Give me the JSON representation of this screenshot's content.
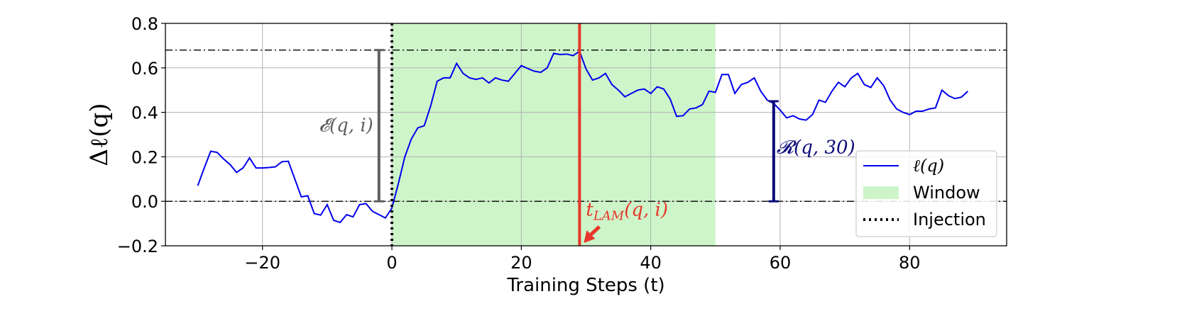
{
  "chart_data": {
    "type": "line",
    "xlabel": "Training Steps (t)",
    "ylabel": "Δℓ(q)",
    "xlim": [
      -35,
      95
    ],
    "ylim": [
      -0.2,
      0.8
    ],
    "xticks": [
      -20,
      0,
      20,
      40,
      60,
      80
    ],
    "yticks": [
      -0.2,
      0.0,
      0.2,
      0.4,
      0.6,
      0.8
    ],
    "xtick_labels": [
      "−20",
      "0",
      "20",
      "40",
      "60",
      "80"
    ],
    "ytick_labels": [
      "−0.2",
      "0.0",
      "0.2",
      "0.4",
      "0.6",
      "0.8"
    ],
    "grid": true,
    "series": [
      {
        "name": "ℓ(q)",
        "color": "#0000ee",
        "x": [
          -30,
          -29,
          -28,
          -27,
          -26,
          -25,
          -24,
          -23,
          -22,
          -21,
          -20,
          -19,
          -18,
          -17,
          -16,
          -15,
          -14,
          -13,
          -12,
          -11,
          -10,
          -9,
          -8,
          -7,
          -6,
          -5,
          -4,
          -3,
          -2,
          -1,
          0,
          1,
          2,
          3,
          4,
          5,
          6,
          7,
          8,
          9,
          10,
          11,
          12,
          13,
          14,
          15,
          16,
          17,
          18,
          19,
          20,
          21,
          22,
          23,
          24,
          25,
          26,
          27,
          28,
          29,
          30,
          31,
          32,
          33,
          34,
          35,
          36,
          37,
          38,
          39,
          40,
          41,
          42,
          43,
          44,
          45,
          46,
          47,
          48,
          49,
          50,
          51,
          52,
          53,
          54,
          55,
          56,
          57,
          58,
          59,
          60,
          61,
          62,
          63,
          64,
          65,
          66,
          67,
          68,
          69,
          70,
          71,
          72,
          73,
          74,
          75,
          76,
          77,
          78,
          79,
          80,
          81,
          82,
          83,
          84,
          85,
          86,
          87,
          88,
          89
        ],
        "y": [
          0.07,
          0.15,
          0.225,
          0.22,
          0.19,
          0.165,
          0.13,
          0.15,
          0.195,
          0.15,
          0.15,
          0.152,
          0.155,
          0.178,
          0.18,
          0.1,
          0.02,
          0.025,
          -0.055,
          -0.062,
          -0.015,
          -0.085,
          -0.095,
          -0.06,
          -0.07,
          -0.015,
          -0.01,
          -0.045,
          -0.06,
          -0.075,
          -0.03,
          0.08,
          0.2,
          0.28,
          0.33,
          0.34,
          0.43,
          0.54,
          0.555,
          0.555,
          0.62,
          0.575,
          0.555,
          0.548,
          0.555,
          0.532,
          0.555,
          0.545,
          0.54,
          0.575,
          0.61,
          0.597,
          0.585,
          0.58,
          0.6,
          0.665,
          0.66,
          0.662,
          0.655,
          0.675,
          0.595,
          0.545,
          0.555,
          0.575,
          0.525,
          0.5,
          0.47,
          0.485,
          0.5,
          0.505,
          0.485,
          0.515,
          0.505,
          0.46,
          0.382,
          0.385,
          0.415,
          0.42,
          0.435,
          0.495,
          0.49,
          0.57,
          0.57,
          0.485,
          0.525,
          0.535,
          0.555,
          0.495,
          0.455,
          0.44,
          0.41,
          0.375,
          0.385,
          0.37,
          0.365,
          0.39,
          0.455,
          0.445,
          0.495,
          0.535,
          0.515,
          0.555,
          0.575,
          0.525,
          0.512,
          0.555,
          0.52,
          0.455,
          0.415,
          0.4,
          0.39,
          0.405,
          0.405,
          0.415,
          0.42,
          0.5,
          0.475,
          0.462,
          0.468,
          0.495
        ]
      }
    ],
    "window": {
      "label": "Window",
      "x_start": 0,
      "x_end": 50,
      "color": "#cdf5c9"
    },
    "injection": {
      "label": "Injection",
      "x": 0
    },
    "t_lam": {
      "x": 29,
      "label": "t_LAM(q, i)",
      "color": "#e8352b"
    },
    "hlines": [
      0.68,
      0.0
    ],
    "effect_bar": {
      "x": -2,
      "y0": 0.0,
      "y1": 0.68,
      "label": "𝓔(q, i)",
      "color": "#606060"
    },
    "retention_bar": {
      "x": 59,
      "y0": 0.0,
      "y1": 0.45,
      "label": "𝓡(q, 30)",
      "color": "#0b0b7a"
    },
    "legend": {
      "position": "lower-right",
      "entries": [
        "ℓ(q)",
        "Window",
        "Injection"
      ]
    }
  }
}
